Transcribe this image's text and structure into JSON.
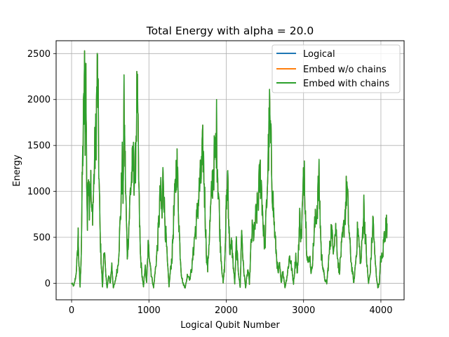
{
  "chart_data": {
    "type": "line",
    "title": "Total Energy with alpha = 20.0",
    "xlabel": "Logical Qubit Number",
    "ylabel": "Energy",
    "xlim": [
      -200,
      4300
    ],
    "ylim": [
      -180,
      2640
    ],
    "xticks": [
      0,
      1000,
      2000,
      3000,
      4000
    ],
    "yticks": [
      0,
      500,
      1000,
      1500,
      2000,
      2500
    ],
    "grid": true,
    "legend_position": "upper right",
    "series": [
      {
        "name": "Logical",
        "color": "#1f77b4"
      },
      {
        "name": "Embed w/o chains",
        "color": "#ff7f0e"
      },
      {
        "name": "Embed with chains",
        "color": "#2ca02c"
      }
    ],
    "x_range": [
      0,
      4096
    ],
    "points": [
      [
        0,
        0
      ],
      [
        30,
        -30
      ],
      [
        55,
        80
      ],
      [
        75,
        300
      ],
      [
        85,
        540
      ],
      [
        95,
        200
      ],
      [
        110,
        -40
      ],
      [
        125,
        350
      ],
      [
        140,
        1200
      ],
      [
        150,
        1600
      ],
      [
        160,
        1900
      ],
      [
        168,
        2530
      ],
      [
        175,
        1700
      ],
      [
        185,
        2200
      ],
      [
        195,
        1200
      ],
      [
        205,
        600
      ],
      [
        215,
        1400
      ],
      [
        230,
        900
      ],
      [
        245,
        1200
      ],
      [
        260,
        700
      ],
      [
        280,
        900
      ],
      [
        300,
        1400
      ],
      [
        315,
        1600
      ],
      [
        325,
        2000
      ],
      [
        335,
        2290
      ],
      [
        345,
        1800
      ],
      [
        355,
        1100
      ],
      [
        370,
        500
      ],
      [
        385,
        200
      ],
      [
        400,
        -50
      ],
      [
        420,
        430
      ],
      [
        440,
        100
      ],
      [
        460,
        -50
      ],
      [
        480,
        80
      ],
      [
        500,
        0
      ],
      [
        520,
        200
      ],
      [
        540,
        -50
      ],
      [
        560,
        0
      ],
      [
        580,
        100
      ],
      [
        600,
        200
      ],
      [
        620,
        500
      ],
      [
        640,
        900
      ],
      [
        655,
        1300
      ],
      [
        665,
        1000
      ],
      [
        678,
        1860
      ],
      [
        690,
        1400
      ],
      [
        705,
        800
      ],
      [
        720,
        300
      ],
      [
        740,
        600
      ],
      [
        760,
        1000
      ],
      [
        780,
        1200
      ],
      [
        800,
        1300
      ],
      [
        820,
        1100
      ],
      [
        835,
        1700
      ],
      [
        848,
        2070
      ],
      [
        860,
        1500
      ],
      [
        875,
        800
      ],
      [
        890,
        300
      ],
      [
        910,
        100
      ],
      [
        930,
        -50
      ],
      [
        950,
        200
      ],
      [
        970,
        0
      ],
      [
        990,
        400
      ],
      [
        1010,
        300
      ],
      [
        1030,
        100
      ],
      [
        1060,
        -50
      ],
      [
        1090,
        200
      ],
      [
        1110,
        400
      ],
      [
        1130,
        700
      ],
      [
        1150,
        1000
      ],
      [
        1170,
        700
      ],
      [
        1185,
        1290
      ],
      [
        1200,
        800
      ],
      [
        1220,
        500
      ],
      [
        1240,
        200
      ],
      [
        1260,
        -30
      ],
      [
        1280,
        150
      ],
      [
        1300,
        300
      ],
      [
        1320,
        700
      ],
      [
        1340,
        1000
      ],
      [
        1360,
        1350
      ],
      [
        1380,
        900
      ],
      [
        1400,
        400
      ],
      [
        1420,
        100
      ],
      [
        1440,
        0
      ],
      [
        1470,
        -50
      ],
      [
        1500,
        100
      ],
      [
        1530,
        50
      ],
      [
        1560,
        200
      ],
      [
        1590,
        500
      ],
      [
        1620,
        700
      ],
      [
        1650,
        1000
      ],
      [
        1680,
        1200
      ],
      [
        1700,
        1470
      ],
      [
        1715,
        1100
      ],
      [
        1730,
        700
      ],
      [
        1745,
        300
      ],
      [
        1760,
        150
      ],
      [
        1780,
        500
      ],
      [
        1800,
        800
      ],
      [
        1820,
        1100
      ],
      [
        1840,
        1300
      ],
      [
        1860,
        1400
      ],
      [
        1875,
        1660
      ],
      [
        1890,
        1200
      ],
      [
        1905,
        900
      ],
      [
        1920,
        500
      ],
      [
        1940,
        200
      ],
      [
        1960,
        0
      ],
      [
        1980,
        200
      ],
      [
        2000,
        800
      ],
      [
        2020,
        1230
      ],
      [
        2035,
        600
      ],
      [
        2050,
        300
      ],
      [
        2070,
        450
      ],
      [
        2090,
        200
      ],
      [
        2110,
        0
      ],
      [
        2130,
        430
      ],
      [
        2150,
        200
      ],
      [
        2180,
        -50
      ],
      [
        2200,
        600
      ],
      [
        2220,
        200
      ],
      [
        2250,
        -50
      ],
      [
        2280,
        150
      ],
      [
        2300,
        0
      ],
      [
        2320,
        400
      ],
      [
        2340,
        600
      ],
      [
        2360,
        500
      ],
      [
        2380,
        700
      ],
      [
        2400,
        800
      ],
      [
        2420,
        1000
      ],
      [
        2440,
        1200
      ],
      [
        2460,
        1000
      ],
      [
        2480,
        600
      ],
      [
        2500,
        400
      ],
      [
        2520,
        800
      ],
      [
        2540,
        1300
      ],
      [
        2560,
        1790
      ],
      [
        2575,
        1500
      ],
      [
        2590,
        1200
      ],
      [
        2610,
        800
      ],
      [
        2630,
        500
      ],
      [
        2650,
        300
      ],
      [
        2670,
        100
      ],
      [
        2690,
        200
      ],
      [
        2710,
        0
      ],
      [
        2730,
        150
      ],
      [
        2760,
        -50
      ],
      [
        2790,
        100
      ],
      [
        2820,
        300
      ],
      [
        2840,
        200
      ],
      [
        2870,
        0
      ],
      [
        2900,
        300
      ],
      [
        2920,
        100
      ],
      [
        2950,
        700
      ],
      [
        2970,
        500
      ],
      [
        2990,
        900
      ],
      [
        3010,
        1310
      ],
      [
        3025,
        800
      ],
      [
        3040,
        400
      ],
      [
        3060,
        200
      ],
      [
        3080,
        300
      ],
      [
        3100,
        100
      ],
      [
        3120,
        300
      ],
      [
        3140,
        600
      ],
      [
        3160,
        700
      ],
      [
        3180,
        900
      ],
      [
        3200,
        1100
      ],
      [
        3215,
        700
      ],
      [
        3230,
        300
      ],
      [
        3250,
        200
      ],
      [
        3270,
        50
      ],
      [
        3300,
        0
      ],
      [
        3330,
        300
      ],
      [
        3360,
        600
      ],
      [
        3380,
        400
      ],
      [
        3400,
        500
      ],
      [
        3420,
        600
      ],
      [
        3440,
        300
      ],
      [
        3460,
        100
      ],
      [
        3480,
        300
      ],
      [
        3500,
        450
      ],
      [
        3520,
        600
      ],
      [
        3540,
        800
      ],
      [
        3560,
        1070
      ],
      [
        3580,
        700
      ],
      [
        3600,
        400
      ],
      [
        3620,
        200
      ],
      [
        3650,
        0
      ],
      [
        3680,
        300
      ],
      [
        3700,
        600
      ],
      [
        3720,
        400
      ],
      [
        3740,
        200
      ],
      [
        3760,
        500
      ],
      [
        3780,
        830
      ],
      [
        3800,
        500
      ],
      [
        3820,
        200
      ],
      [
        3840,
        0
      ],
      [
        3860,
        100
      ],
      [
        3880,
        400
      ],
      [
        3900,
        700
      ],
      [
        3920,
        300
      ],
      [
        3940,
        100
      ],
      [
        3960,
        -50
      ],
      [
        3980,
        0
      ],
      [
        4000,
        300
      ],
      [
        4020,
        250
      ],
      [
        4040,
        500
      ],
      [
        4060,
        600
      ],
      [
        4080,
        650
      ]
    ]
  }
}
